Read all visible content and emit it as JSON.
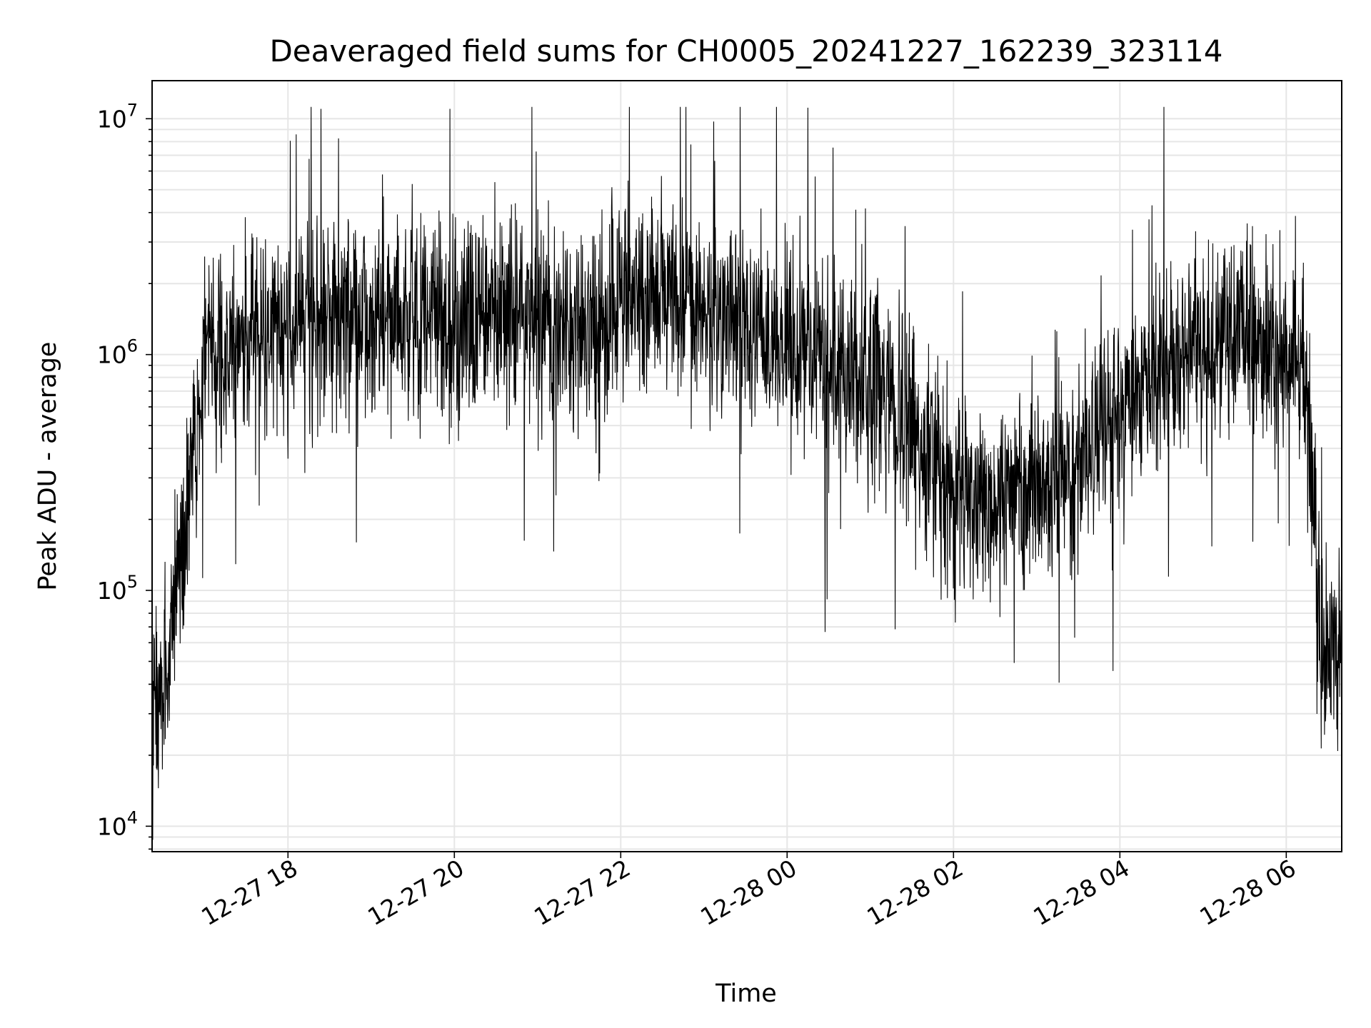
{
  "chart_data": {
    "type": "line",
    "title": "Deaveraged field sums for CH0005_20241227_162239_323114",
    "xlabel": "Time",
    "ylabel": "Peak ADU - average",
    "yscale": "log",
    "ylim": [
      7800,
      14500000
    ],
    "xlim": [
      "2024-12-27 16:22",
      "2024-12-28 06:40"
    ],
    "x_ticks": [
      "12-27 18",
      "12-27 20",
      "12-27 22",
      "12-28 00",
      "12-28 02",
      "12-28 04",
      "12-28 06"
    ],
    "y_ticks": [
      {
        "base": "10",
        "exp": "4",
        "value": 10000
      },
      {
        "base": "10",
        "exp": "5",
        "value": 100000
      },
      {
        "base": "10",
        "exp": "6",
        "value": 1000000
      },
      {
        "base": "10",
        "exp": "7",
        "value": 10000000
      }
    ],
    "grid": true,
    "line_color": "#000000",
    "grid_color": "#e6e6e6",
    "series": [
      {
        "x": [
          "2024-12-27 16:22",
          "2024-12-27 16:35",
          "2024-12-27 16:45",
          "2024-12-27 17:00",
          "2024-12-27 17:30",
          "2024-12-27 18:00",
          "2024-12-27 18:30",
          "2024-12-27 19:00",
          "2024-12-27 19:30",
          "2024-12-27 20:00",
          "2024-12-27 20:30",
          "2024-12-27 21:00",
          "2024-12-27 21:30",
          "2024-12-27 22:00",
          "2024-12-27 22:30",
          "2024-12-27 23:00",
          "2024-12-27 23:30",
          "2024-12-28 00:00",
          "2024-12-28 00:30",
          "2024-12-28 01:00",
          "2024-12-28 01:30",
          "2024-12-28 02:00",
          "2024-12-28 02:30",
          "2024-12-28 03:00",
          "2024-12-28 03:30",
          "2024-12-28 04:00",
          "2024-12-28 04:30",
          "2024-12-28 05:00",
          "2024-12-28 05:30",
          "2024-12-28 06:00",
          "2024-12-28 06:15",
          "2024-12-28 06:25",
          "2024-12-28 06:40"
        ],
        "values": [
          30000,
          60000,
          150000,
          1000000,
          1100000,
          1300000,
          1400000,
          1300000,
          1500000,
          1300000,
          1600000,
          1400000,
          1300000,
          1600000,
          1900000,
          1500000,
          1300000,
          1100000,
          900000,
          800000,
          500000,
          250000,
          220000,
          280000,
          350000,
          600000,
          900000,
          1100000,
          1200000,
          1000000,
          700000,
          60000,
          50000
        ]
      }
    ]
  }
}
